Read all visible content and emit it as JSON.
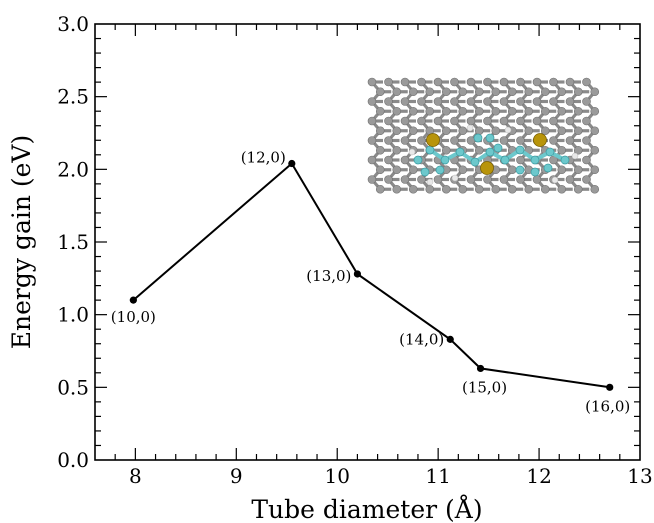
{
  "chart_data": {
    "type": "line",
    "xlabel": "Tube diameter (Å)",
    "ylabel": "Energy gain (eV)",
    "xlim": [
      7.6,
      13.0
    ],
    "ylim": [
      0.0,
      3.0
    ],
    "xticks": [
      "8",
      "9",
      "10",
      "11",
      "12",
      "13"
    ],
    "yticks": [
      "0.0",
      "0.5",
      "1.0",
      "1.5",
      "2.0",
      "2.5",
      "3.0"
    ],
    "grid": false,
    "x": [
      7.98,
      9.55,
      10.2,
      11.12,
      11.42,
      12.7
    ],
    "y": [
      1.1,
      2.04,
      1.28,
      0.83,
      0.63,
      0.5
    ],
    "point_labels": [
      "(10,0)",
      "(12,0)",
      "(13,0)",
      "(14,0)",
      "(15,0)",
      "(16,0)"
    ],
    "line_color": "#000000",
    "inset": {
      "type": "molecular-structure-image",
      "atom_colors": {
        "carbon": "#9a9a9a",
        "sulfur": "#b8940a",
        "ring": "#6cc8cc",
        "hydrogen": "#e8e8e8"
      }
    }
  }
}
